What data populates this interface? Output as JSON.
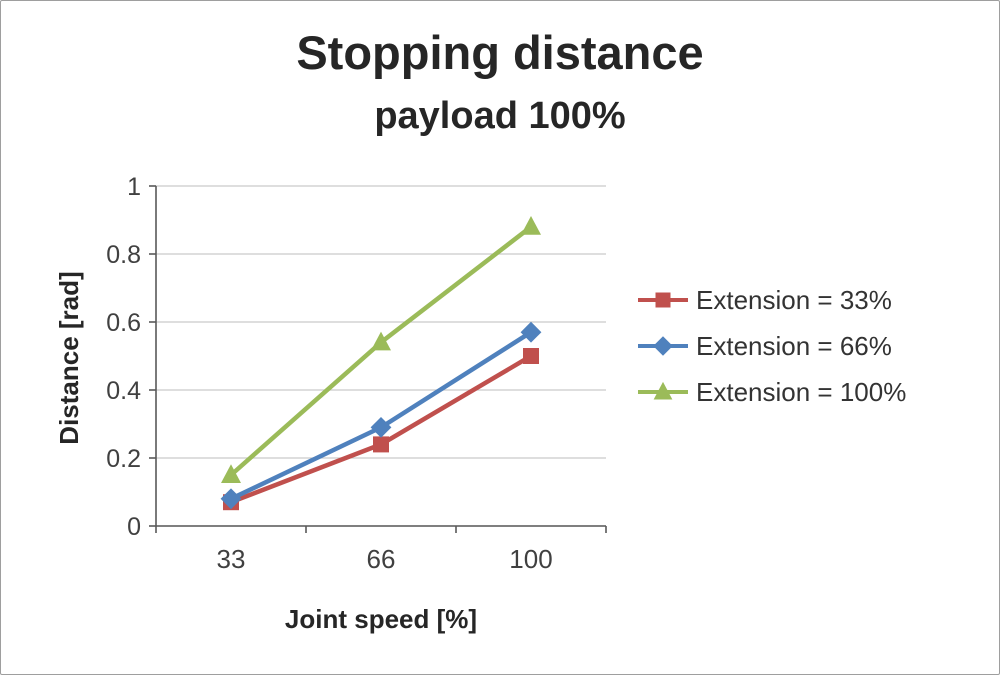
{
  "title": "Stopping distance",
  "subtitle": "payload 100%",
  "chart_data": {
    "type": "line",
    "categories": [
      "33",
      "66",
      "100"
    ],
    "xlabel": "Joint speed [%]",
    "ylabel": "Distance [rad]",
    "ylim": [
      0,
      1
    ],
    "yticks": [
      0,
      0.2,
      0.4,
      0.6,
      0.8,
      1
    ],
    "grid": true,
    "legend_position": "right",
    "series": [
      {
        "name": "Extension = 33%",
        "color": "#c0504d",
        "marker": "square",
        "values": [
          0.07,
          0.24,
          0.5
        ]
      },
      {
        "name": "Extension = 66%",
        "color": "#4f81bd",
        "marker": "diamond",
        "values": [
          0.08,
          0.29,
          0.57
        ]
      },
      {
        "name": "Extension = 100%",
        "color": "#9bbb59",
        "marker": "triangle",
        "values": [
          0.15,
          0.54,
          0.88
        ]
      }
    ],
    "colors": {
      "gridline": "#c9c9c9",
      "axis": "#595959",
      "tick_label": "#404040"
    }
  }
}
